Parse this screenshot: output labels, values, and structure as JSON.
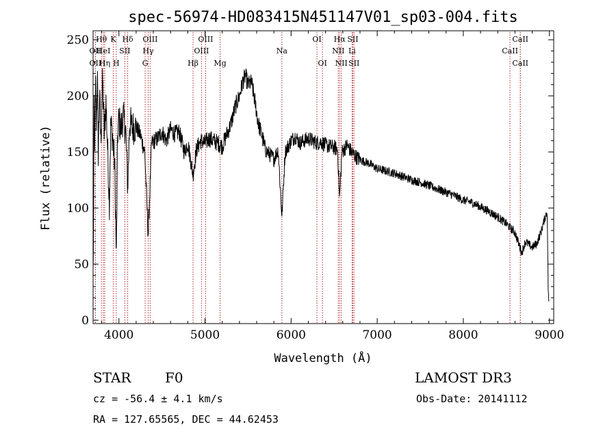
{
  "chart_data": {
    "type": "line",
    "title": "spec-56974-HD083415N451147V01_sp03-004.fits",
    "xlabel": "Wavelength (Å)",
    "ylabel": "Flux (relative)",
    "xlim": [
      3700,
      9050
    ],
    "ylim": [
      -3,
      258
    ],
    "xticks": [
      4000,
      5000,
      6000,
      7000,
      8000,
      9000
    ],
    "yticks": [
      0,
      50,
      100,
      150,
      200,
      250
    ],
    "grid": false,
    "series": [
      {
        "name": "flux",
        "anchors": [
          [
            3700,
            40
          ],
          [
            3705,
            80
          ],
          [
            3712,
            195
          ],
          [
            3720,
            150
          ],
          [
            3730,
            210
          ],
          [
            3740,
            175
          ],
          [
            3750,
            220
          ],
          [
            3760,
            150
          ],
          [
            3775,
            200
          ],
          [
            3790,
            160
          ],
          [
            3810,
            215
          ],
          [
            3830,
            165
          ],
          [
            3850,
            195
          ],
          [
            3870,
            150
          ],
          [
            3889,
            105
          ],
          [
            3905,
            175
          ],
          [
            3925,
            165
          ],
          [
            3950,
            140
          ],
          [
            3970,
            55
          ],
          [
            3985,
            165
          ],
          [
            4000,
            180
          ],
          [
            4020,
            170
          ],
          [
            4050,
            182
          ],
          [
            4080,
            168
          ],
          [
            4102,
            118
          ],
          [
            4125,
            178
          ],
          [
            4150,
            172
          ],
          [
            4200,
            172
          ],
          [
            4250,
            165
          ],
          [
            4300,
            150
          ],
          [
            4340,
            75
          ],
          [
            4380,
            158
          ],
          [
            4450,
            162
          ],
          [
            4500,
            168
          ],
          [
            4550,
            160
          ],
          [
            4600,
            170
          ],
          [
            4650,
            166
          ],
          [
            4700,
            168
          ],
          [
            4760,
            150
          ],
          [
            4800,
            158
          ],
          [
            4861,
            130
          ],
          [
            4900,
            152
          ],
          [
            4950,
            160
          ],
          [
            5000,
            158
          ],
          [
            5050,
            162
          ],
          [
            5100,
            160
          ],
          [
            5150,
            158
          ],
          [
            5200,
            155
          ],
          [
            5250,
            165
          ],
          [
            5300,
            175
          ],
          [
            5350,
            190
          ],
          [
            5400,
            200
          ],
          [
            5440,
            213
          ],
          [
            5470,
            218
          ],
          [
            5500,
            210
          ],
          [
            5540,
            212
          ],
          [
            5580,
            195
          ],
          [
            5620,
            175
          ],
          [
            5660,
            165
          ],
          [
            5700,
            152
          ],
          [
            5750,
            148
          ],
          [
            5800,
            144
          ],
          [
            5850,
            152
          ],
          [
            5893,
            92
          ],
          [
            5930,
            150
          ],
          [
            6000,
            160
          ],
          [
            6050,
            164
          ],
          [
            6100,
            158
          ],
          [
            6150,
            160
          ],
          [
            6200,
            162
          ],
          [
            6250,
            160
          ],
          [
            6300,
            158
          ],
          [
            6350,
            159
          ],
          [
            6400,
            156
          ],
          [
            6450,
            155
          ],
          [
            6500,
            154
          ],
          [
            6540,
            152
          ],
          [
            6563,
            108
          ],
          [
            6590,
            150
          ],
          [
            6650,
            156
          ],
          [
            6700,
            150
          ],
          [
            6750,
            146
          ],
          [
            6800,
            143
          ],
          [
            6900,
            140
          ],
          [
            7000,
            135
          ],
          [
            7100,
            133
          ],
          [
            7200,
            131
          ],
          [
            7300,
            128
          ],
          [
            7400,
            125
          ],
          [
            7500,
            123
          ],
          [
            7600,
            120
          ],
          [
            7700,
            117
          ],
          [
            7800,
            114
          ],
          [
            7900,
            111
          ],
          [
            8000,
            107
          ],
          [
            8100,
            105
          ],
          [
            8200,
            101
          ],
          [
            8300,
            97
          ],
          [
            8400,
            92
          ],
          [
            8500,
            86
          ],
          [
            8600,
            78
          ],
          [
            8680,
            60
          ],
          [
            8720,
            70
          ],
          [
            8800,
            65
          ],
          [
            8850,
            68
          ],
          [
            8900,
            78
          ],
          [
            8950,
            92
          ],
          [
            8975,
            97
          ],
          [
            8985,
            30
          ],
          [
            8995,
            15
          ]
        ]
      }
    ],
    "spectral_lines": [
      {
        "label": "Hθ",
        "x": 3797,
        "row": 0
      },
      {
        "label": "OII",
        "x": 3727,
        "row": 1
      },
      {
        "label": "HeI",
        "x": 3820,
        "row": 1
      },
      {
        "label": "OII",
        "x": 3727,
        "row": 2
      },
      {
        "label": "Hη",
        "x": 3835,
        "row": 2
      },
      {
        "label": "K",
        "x": 3934,
        "row": 0
      },
      {
        "label": "SII",
        "x": 4069,
        "row": 1
      },
      {
        "label": "H",
        "x": 3969,
        "row": 2
      },
      {
        "label": "Hδ",
        "x": 4102,
        "row": 0
      },
      {
        "label": "OIII",
        "x": 4363,
        "row": 0
      },
      {
        "label": "Hγ",
        "x": 4340,
        "row": 1
      },
      {
        "label": "G",
        "x": 4305,
        "row": 2
      },
      {
        "label": "Hβ",
        "x": 4861,
        "row": 2
      },
      {
        "label": "OIII",
        "x": 5007,
        "row": 0
      },
      {
        "label": "OIII",
        "x": 4959,
        "row": 1
      },
      {
        "label": "Mg",
        "x": 5175,
        "row": 2
      },
      {
        "label": "Na",
        "x": 5893,
        "row": 1
      },
      {
        "label": "OI",
        "x": 6300,
        "row": 0
      },
      {
        "label": "OI",
        "x": 6364,
        "row": 2
      },
      {
        "label": "Hα",
        "x": 6563,
        "row": 0
      },
      {
        "label": "NII",
        "x": 6548,
        "row": 1
      },
      {
        "label": "NII",
        "x": 6583,
        "row": 2
      },
      {
        "label": "SII",
        "x": 6717,
        "row": 0
      },
      {
        "label": "Li",
        "x": 6708,
        "row": 1
      },
      {
        "label": "SII",
        "x": 6731,
        "row": 2
      },
      {
        "label": "CaII",
        "x": 8662,
        "row": 0
      },
      {
        "label": "CaII",
        "x": 8542,
        "row": 1
      },
      {
        "label": "CaII",
        "x": 8662,
        "row": 2
      }
    ],
    "annotations": {
      "object_class": "STAR",
      "subclass": "F0",
      "survey": "LAMOST DR3",
      "redshift_text": "cz = -56.4 ± 4.1 km/s",
      "obs_date_text": "Obs-Date: 20141112",
      "coords_text": "RA = 127.65565, DEC =  44.62453"
    }
  }
}
